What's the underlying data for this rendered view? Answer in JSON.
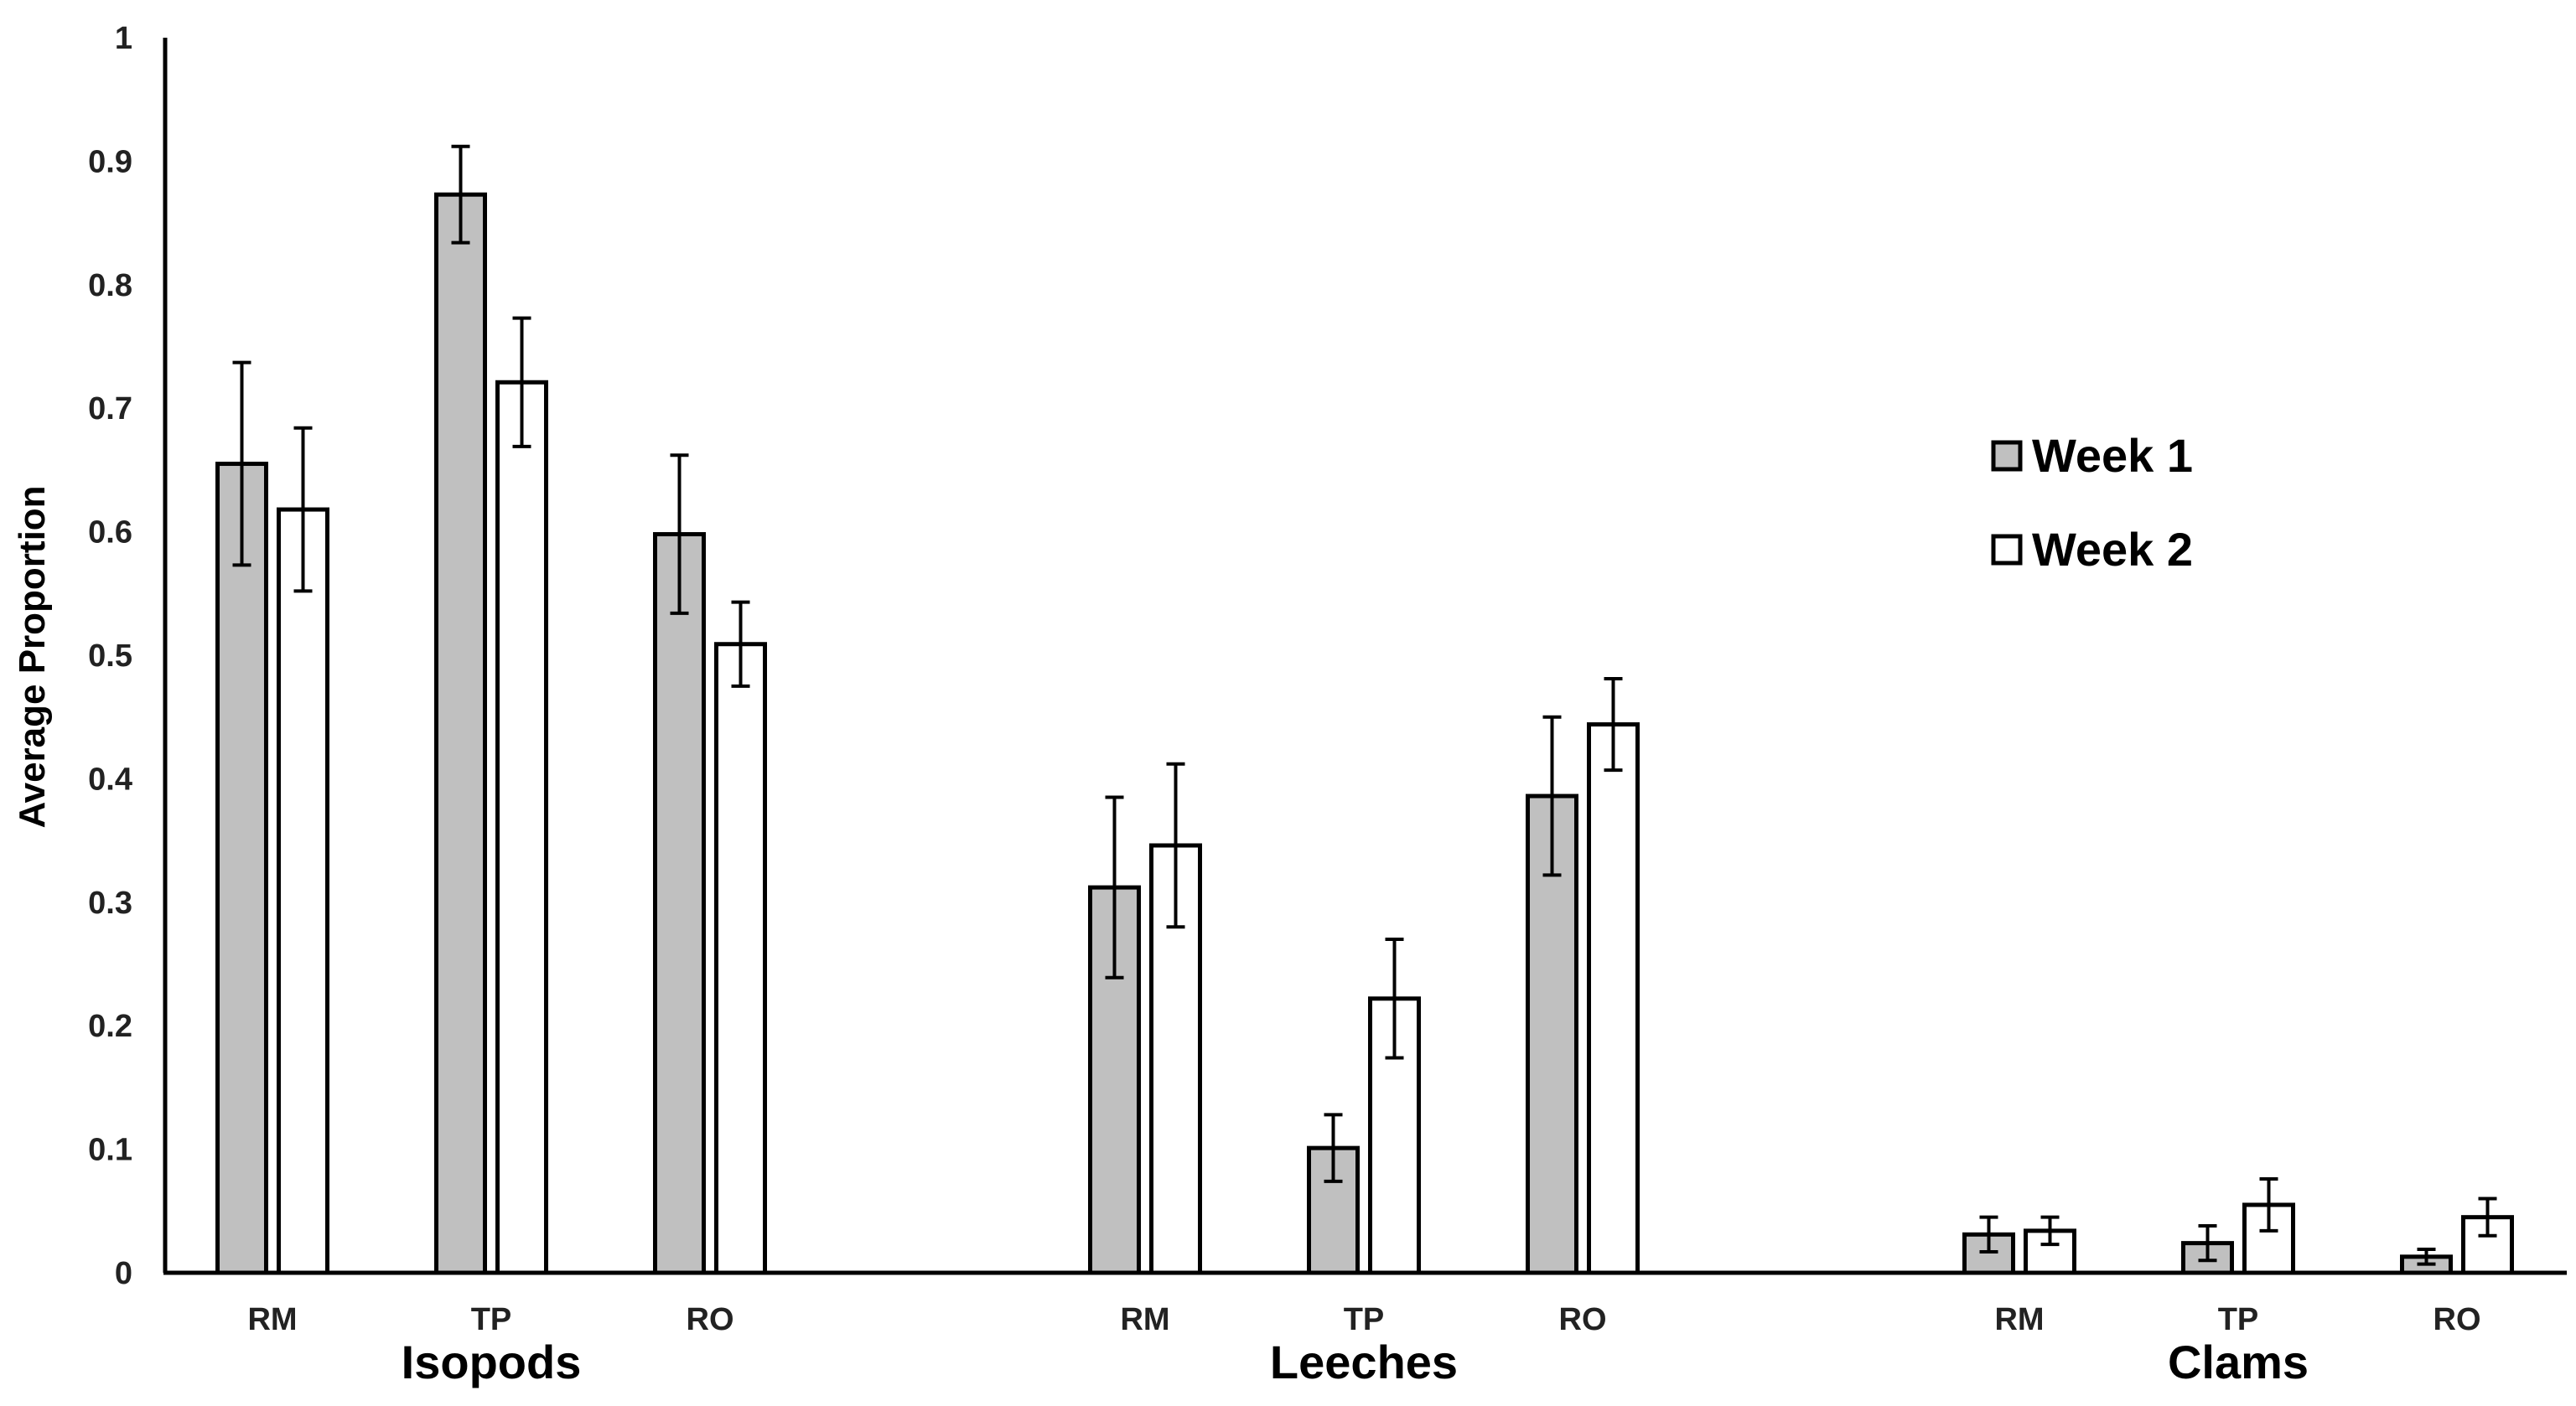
{
  "chart_data": {
    "type": "bar",
    "ylabel": "Average Proportion",
    "xlabel": "",
    "ylim": [
      0,
      1
    ],
    "yticks": [
      "0",
      "0.1",
      "0.2",
      "0.3",
      "0.4",
      "0.5",
      "0.6",
      "0.7",
      "0.8",
      "0.9",
      "1"
    ],
    "grid": false,
    "legend_position": "right",
    "groups": [
      {
        "name": "Isopods",
        "categories": [
          "RM",
          "TP",
          "RO"
        ]
      },
      {
        "name": "Leeches",
        "categories": [
          "RM",
          "TP",
          "RO"
        ]
      },
      {
        "name": "Clams",
        "categories": [
          "RM",
          "TP",
          "RO"
        ]
      }
    ],
    "series": [
      {
        "name": "Week 1",
        "color": "#c0c0c0",
        "values": [
          0.655,
          0.873,
          0.598,
          0.312,
          0.101,
          0.386,
          0.031,
          0.024,
          0.013
        ],
        "errors": [
          0.082,
          0.039,
          0.064,
          0.073,
          0.027,
          0.064,
          0.014,
          0.014,
          0.006
        ]
      },
      {
        "name": "Week 2",
        "color": "#ffffff",
        "values": [
          0.618,
          0.721,
          0.509,
          0.346,
          0.222,
          0.444,
          0.034,
          0.055,
          0.045
        ],
        "errors": [
          0.066,
          0.052,
          0.034,
          0.066,
          0.048,
          0.037,
          0.011,
          0.021,
          0.015
        ]
      }
    ]
  }
}
